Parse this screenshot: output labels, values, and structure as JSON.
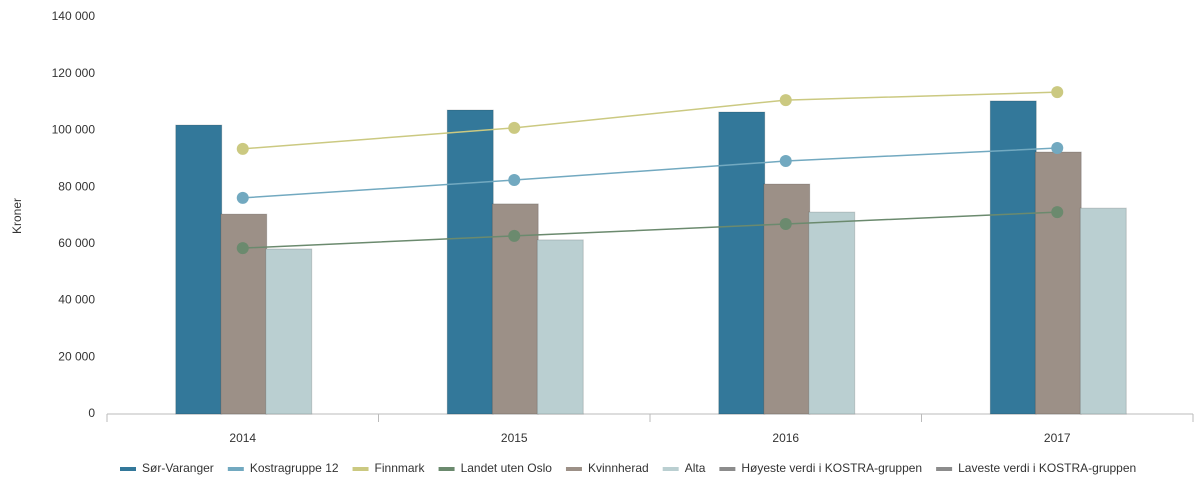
{
  "chart_data": {
    "type": "bar",
    "y_label": "Kroner",
    "categories": [
      "2014",
      "2015",
      "2016",
      "2017"
    ],
    "series": [
      {
        "name": "Sør-Varanger",
        "type": "bar",
        "color": "#33789a",
        "values": [
          101900,
          107200,
          106500,
          110400
        ]
      },
      {
        "name": "Kostragruppe 12",
        "type": "line",
        "color": "#72a9c0",
        "values": [
          76200,
          82500,
          89200,
          93800
        ]
      },
      {
        "name": "Finnmark",
        "type": "line",
        "color": "#cbc981",
        "values": [
          93500,
          100900,
          110700,
          113500
        ]
      },
      {
        "name": "Landet uten Oslo",
        "type": "line",
        "color": "#6b8a6e",
        "values": [
          58500,
          62800,
          67000,
          71200
        ]
      },
      {
        "name": "Kvinnherad",
        "type": "bar",
        "color": "#9c9087",
        "values": [
          70500,
          74100,
          81100,
          92400
        ]
      },
      {
        "name": "Alta",
        "type": "bar",
        "color": "#bacfd1",
        "values": [
          58200,
          61400,
          71200,
          72600
        ]
      },
      {
        "name": "Høyeste verdi i KOSTRA-gruppen",
        "type": "line",
        "color": "#8c8c8c",
        "values": [
          null,
          null,
          null,
          null
        ]
      },
      {
        "name": "Laveste verdi i KOSTRA-gruppen",
        "type": "line",
        "color": "#8c8c8c",
        "values": [
          null,
          null,
          null,
          null
        ]
      }
    ],
    "ylim": [
      0,
      140000
    ],
    "yticks": [
      0,
      {
        "value": 20000,
        "label": "20 000"
      },
      {
        "value": 40000,
        "label": "40 000"
      },
      {
        "value": 60000,
        "label": "60 000"
      },
      {
        "value": 80000,
        "label": "80 000"
      },
      {
        "value": 100000,
        "label": "100 000"
      },
      {
        "value": 120000,
        "label": "120 000"
      },
      {
        "value": 140000,
        "label": "140 000"
      }
    ],
    "grid": false
  }
}
